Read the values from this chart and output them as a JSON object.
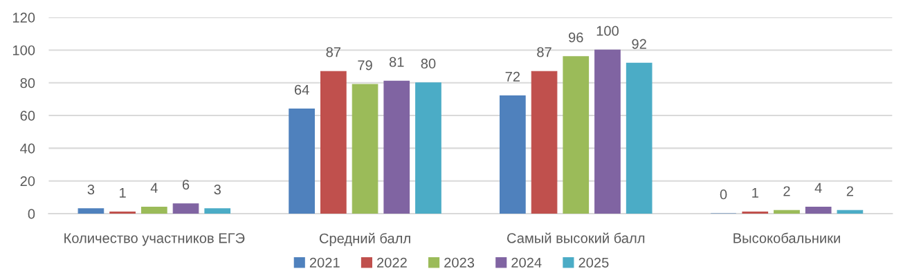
{
  "chart_data": {
    "type": "bar",
    "categories": [
      "Количество участников ЕГЭ",
      "Средний балл",
      "Самый высокий балл",
      "Высокобальники"
    ],
    "series": [
      {
        "name": "2021",
        "color": "#4f81bd",
        "values": [
          3,
          64,
          72,
          0
        ]
      },
      {
        "name": "2022",
        "color": "#c0504d",
        "values": [
          1,
          87,
          87,
          1
        ]
      },
      {
        "name": "2023",
        "color": "#9bbb59",
        "values": [
          4,
          79,
          96,
          2
        ]
      },
      {
        "name": "2024",
        "color": "#8064a2",
        "values": [
          6,
          81,
          100,
          4
        ]
      },
      {
        "name": "2025",
        "color": "#4bacc6",
        "values": [
          3,
          80,
          92,
          2
        ]
      }
    ],
    "ylim": [
      0,
      120
    ],
    "yticks": [
      0,
      20,
      40,
      60,
      80,
      100,
      120
    ],
    "grid": "y",
    "legend": "bottom",
    "data_labels": true
  }
}
